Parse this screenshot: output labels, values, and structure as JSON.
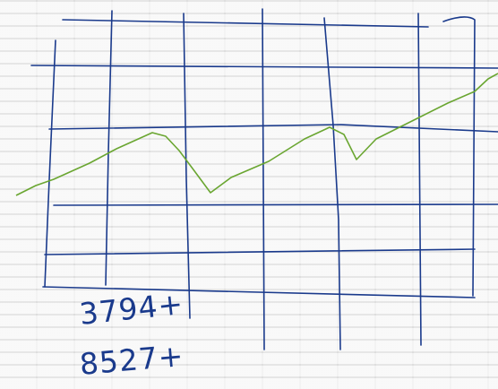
{
  "notes": [
    "3794+",
    "8527+"
  ]
}
